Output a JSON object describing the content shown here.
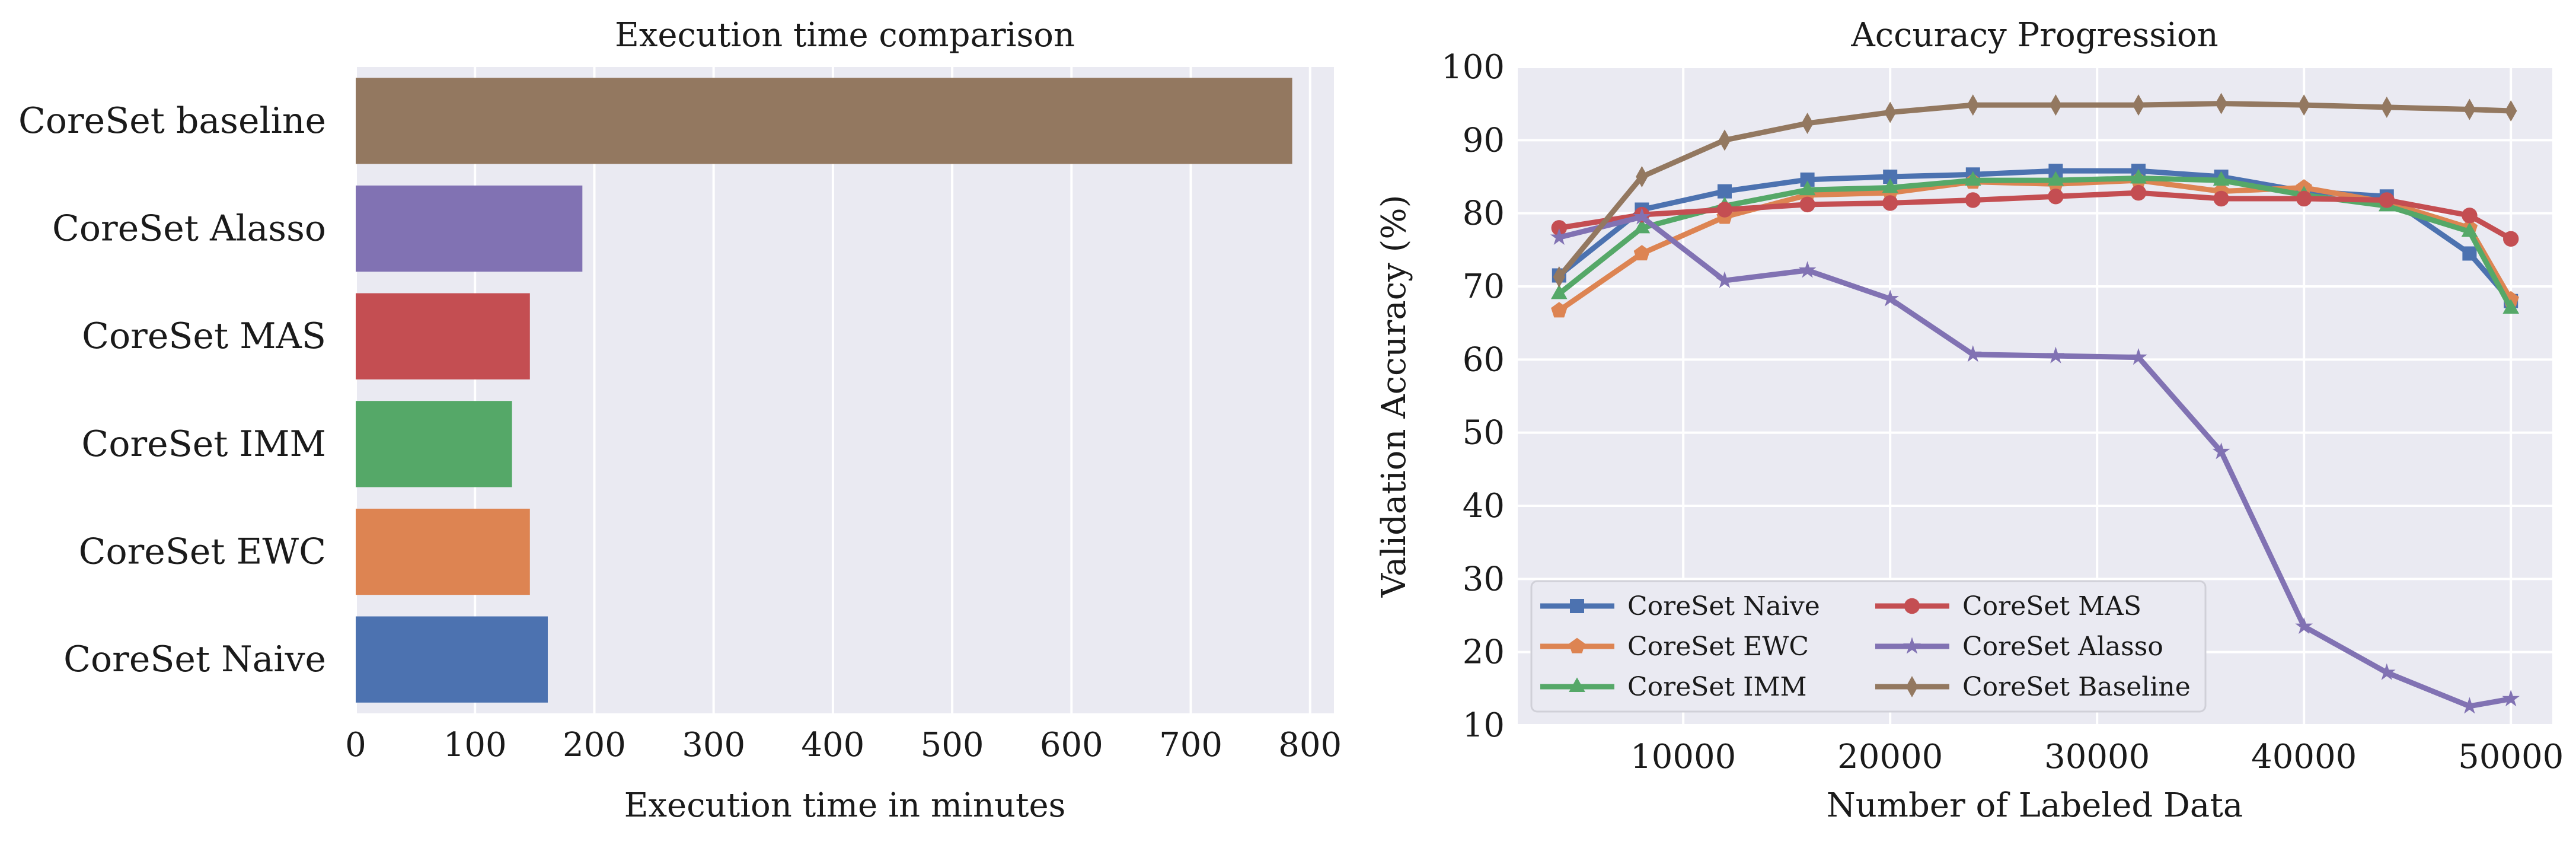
{
  "chart_data": [
    {
      "type": "bar",
      "orientation": "horizontal",
      "title": "Execution time comparison",
      "xlabel": "Execution time in minutes",
      "ylabel": "",
      "xlim": [
        0,
        820
      ],
      "xticks": [
        0,
        100,
        200,
        300,
        400,
        500,
        600,
        700,
        800
      ],
      "grid": true,
      "categories": [
        "CoreSet baseline",
        "CoreSet Alasso",
        "CoreSet MAS",
        "CoreSet IMM",
        "CoreSet EWC",
        "CoreSet Naive"
      ],
      "values": [
        785,
        190,
        146,
        131,
        146,
        161
      ],
      "colors": [
        "#937860",
        "#8172b3",
        "#c44e52",
        "#55a868",
        "#dd8452",
        "#4c72b0"
      ]
    },
    {
      "type": "line",
      "title": "Accuracy Progression",
      "xlabel": "Number of Labeled Data",
      "ylabel": "Validation Accuracy (%)",
      "xlim": [
        2000,
        52000
      ],
      "ylim": [
        10,
        100
      ],
      "xticks": [
        10000,
        20000,
        30000,
        40000,
        50000
      ],
      "yticks": [
        10,
        20,
        30,
        40,
        50,
        60,
        70,
        80,
        90,
        100
      ],
      "grid": true,
      "legend_position": "lower-left",
      "x": [
        4000,
        8000,
        12000,
        16000,
        20000,
        24000,
        28000,
        32000,
        36000,
        40000,
        44000,
        48000,
        50000
      ],
      "series": [
        {
          "name": "CoreSet Naive",
          "color": "#4c72b0",
          "marker": "square",
          "values": [
            71.5,
            80.5,
            83.0,
            84.6,
            85.0,
            85.3,
            85.8,
            85.8,
            85.0,
            83.0,
            82.3,
            74.5,
            68.0
          ]
        },
        {
          "name": "CoreSet EWC",
          "color": "#dd8452",
          "marker": "pentagon",
          "values": [
            66.7,
            74.5,
            79.5,
            82.5,
            82.8,
            84.3,
            84.0,
            84.5,
            83.0,
            83.5,
            81.5,
            78.0,
            68.2
          ]
        },
        {
          "name": "CoreSet IMM",
          "color": "#55a868",
          "marker": "triangle",
          "values": [
            69.0,
            78.0,
            81.0,
            83.2,
            83.5,
            84.5,
            84.5,
            84.8,
            84.5,
            82.5,
            81.0,
            77.5,
            67.0
          ]
        },
        {
          "name": "CoreSet MAS",
          "color": "#c44e52",
          "marker": "circle",
          "values": [
            78.0,
            79.8,
            80.5,
            81.2,
            81.4,
            81.8,
            82.3,
            82.8,
            82.0,
            82.0,
            81.8,
            79.7,
            76.5
          ]
        },
        {
          "name": "CoreSet Alasso",
          "color": "#8172b3",
          "marker": "star",
          "values": [
            76.7,
            79.5,
            70.8,
            72.2,
            68.3,
            60.7,
            60.5,
            60.3,
            47.4,
            23.5,
            17.2,
            12.6,
            13.6
          ]
        },
        {
          "name": "CoreSet Baseline",
          "color": "#937860",
          "marker": "diamond",
          "values": [
            71.3,
            85.0,
            90.0,
            92.3,
            93.8,
            94.8,
            94.8,
            94.8,
            95.0,
            94.8,
            94.5,
            94.2,
            94.0
          ]
        }
      ]
    }
  ]
}
